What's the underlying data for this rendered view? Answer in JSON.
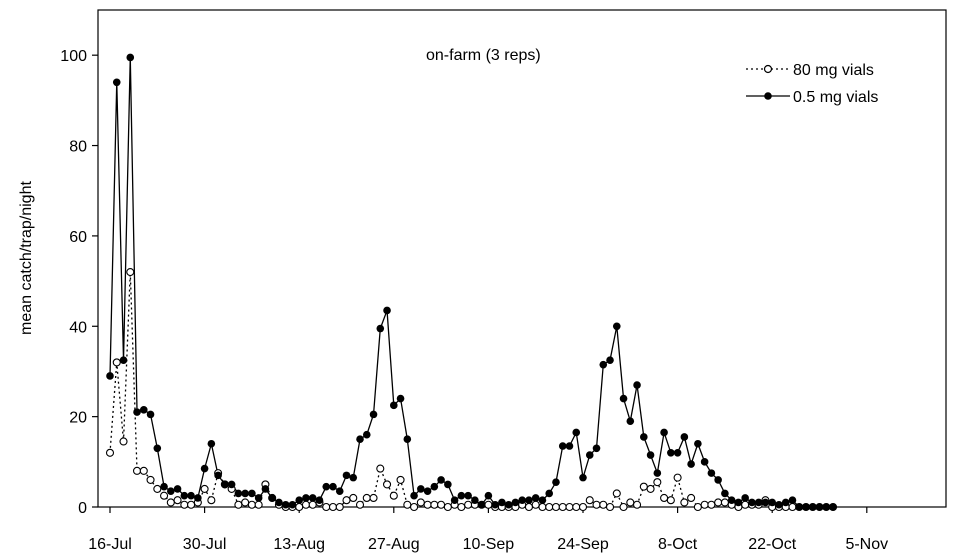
{
  "chart_data": {
    "type": "line",
    "title": "",
    "annotation": "on-farm (3 reps)",
    "xlabel": "",
    "ylabel": "mean catch/trap/night",
    "x_unit": "day",
    "x_tick_labels": [
      "16-Jul",
      "30-Jul",
      "13-Aug",
      "27-Aug",
      "10-Sep",
      "24-Sep",
      "8-Oct",
      "22-Oct",
      "5-Nov"
    ],
    "x_tick_days": [
      0,
      14,
      28,
      42,
      56,
      70,
      84,
      98,
      112
    ],
    "ylim": [
      0,
      110
    ],
    "y_ticks": [
      0,
      20,
      40,
      60,
      80,
      100
    ],
    "legend_position": "top-right",
    "series": [
      {
        "name": "80 mg vials",
        "line_style": "dotted",
        "marker": "open-circle",
        "x": [
          0,
          1,
          2,
          3,
          4,
          5,
          6,
          7,
          8,
          9,
          10,
          11,
          12,
          13,
          14,
          15,
          16,
          17,
          18,
          19,
          20,
          21,
          22,
          23,
          24,
          25,
          26,
          27,
          28,
          29,
          30,
          31,
          32,
          33,
          34,
          35,
          36,
          37,
          38,
          39,
          40,
          41,
          42,
          43,
          44,
          45,
          46,
          47,
          48,
          49,
          50,
          51,
          52,
          53,
          54,
          55,
          56,
          57,
          58,
          59,
          60,
          61,
          62,
          63,
          64,
          65,
          66,
          67,
          68,
          69,
          70,
          71,
          72,
          73,
          74,
          75,
          76,
          77,
          78,
          79,
          80,
          81,
          82,
          83,
          84,
          85,
          86,
          87,
          88,
          89,
          90,
          91,
          92,
          93,
          94,
          95,
          96,
          97,
          98,
          99,
          100,
          101,
          102,
          103,
          104,
          105,
          106,
          107
        ],
        "values": [
          12,
          32,
          14.5,
          52,
          8,
          8,
          6,
          4,
          2.5,
          1,
          1.5,
          0.5,
          0.5,
          1,
          4,
          1.5,
          7.5,
          5,
          4,
          0.5,
          1,
          0.5,
          0.5,
          5,
          2,
          0.5,
          0,
          0,
          0,
          0.5,
          0.5,
          1,
          0,
          0,
          0,
          1.5,
          2,
          0.5,
          2,
          2,
          8.5,
          5,
          2.5,
          6,
          0.5,
          0,
          1,
          0.5,
          0.5,
          0.5,
          0,
          0.5,
          0,
          0.5,
          0.5,
          0.5,
          0.5,
          0,
          0,
          0,
          0,
          0.5,
          0,
          0.5,
          0,
          0,
          0,
          0,
          0,
          0,
          0,
          1.5,
          0.5,
          0.5,
          0,
          3,
          0,
          1,
          0.5,
          4.5,
          4,
          5.5,
          2,
          1.5,
          6.5,
          1,
          2,
          0,
          0.5,
          0.5,
          1,
          1,
          0.5,
          0,
          0.5,
          0.5,
          0.5,
          1.5,
          0,
          0,
          0,
          0,
          0,
          0,
          0,
          0,
          0,
          0
        ]
      },
      {
        "name": "0.5 mg vials",
        "line_style": "solid",
        "marker": "filled-circle",
        "x": [
          0,
          1,
          2,
          3,
          4,
          5,
          6,
          7,
          8,
          9,
          10,
          11,
          12,
          13,
          14,
          15,
          16,
          17,
          18,
          19,
          20,
          21,
          22,
          23,
          24,
          25,
          26,
          27,
          28,
          29,
          30,
          31,
          32,
          33,
          34,
          35,
          36,
          37,
          38,
          39,
          40,
          41,
          42,
          43,
          44,
          45,
          46,
          47,
          48,
          49,
          50,
          51,
          52,
          53,
          54,
          55,
          56,
          57,
          58,
          59,
          60,
          61,
          62,
          63,
          64,
          65,
          66,
          67,
          68,
          69,
          70,
          71,
          72,
          73,
          74,
          75,
          76,
          77,
          78,
          79,
          80,
          81,
          82,
          83,
          84,
          85,
          86,
          87,
          88,
          89,
          90,
          91,
          92,
          93,
          94,
          95,
          96,
          97,
          98,
          99,
          100,
          101,
          102,
          103,
          104,
          105,
          106,
          107
        ],
        "values": [
          29,
          94,
          32.5,
          99.5,
          21,
          21.5,
          20.5,
          13,
          4.5,
          3.5,
          4,
          2.5,
          2.5,
          2,
          8.5,
          14,
          7,
          5,
          5,
          3,
          3,
          3,
          2,
          4,
          2,
          1,
          0.5,
          0.5,
          1.5,
          2,
          2,
          1.5,
          4.5,
          4.5,
          3.5,
          7,
          6.5,
          15,
          16,
          20.5,
          39.5,
          43.5,
          22.5,
          24,
          15,
          2.5,
          4,
          3.5,
          4.5,
          6,
          5,
          1.5,
          2.5,
          2.5,
          1.5,
          0.5,
          2.5,
          0.5,
          1,
          0.5,
          1,
          1.5,
          1.5,
          2,
          1.5,
          3,
          5.5,
          13.5,
          13.5,
          16.5,
          6.5,
          11.5,
          13,
          31.5,
          32.5,
          40,
          24,
          19,
          27,
          15.5,
          11.5,
          7.5,
          16.5,
          12,
          12,
          15.5,
          9.5,
          14,
          10,
          7.5,
          6,
          3,
          1.5,
          1,
          2,
          1,
          1,
          1,
          1,
          0.5,
          1,
          1.5,
          0,
          0,
          0,
          0,
          0,
          0
        ]
      }
    ]
  }
}
